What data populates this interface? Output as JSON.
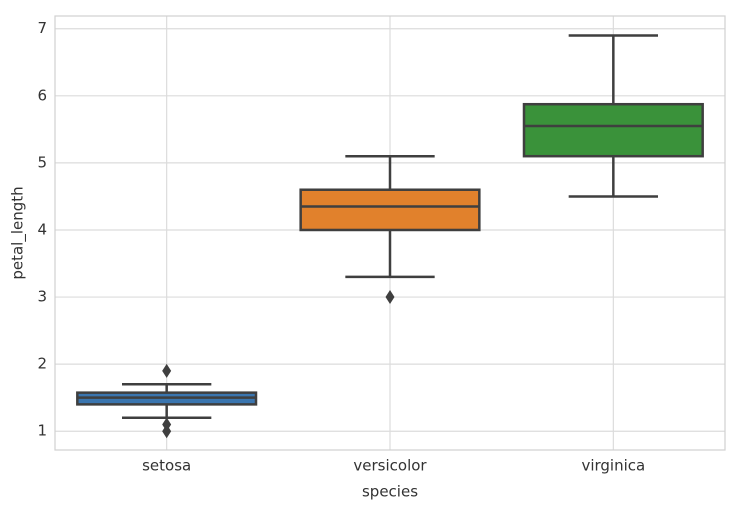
{
  "chart_data": {
    "type": "box",
    "x_label": "species",
    "y_label": "petal_length",
    "categories": [
      "setosa",
      "versicolor",
      "virginica"
    ],
    "boxes": [
      {
        "color": "#3a75af",
        "whislo": 1.2,
        "q1": 1.4,
        "med": 1.5,
        "q3": 1.575,
        "whishi": 1.7,
        "fliers": [
          1.9,
          1.0,
          1.1
        ]
      },
      {
        "color": "#e1812c",
        "whislo": 3.3,
        "q1": 4.0,
        "med": 4.35,
        "q3": 4.6,
        "whishi": 5.1,
        "fliers": [
          3.0
        ]
      },
      {
        "color": "#3a923a",
        "whislo": 4.5,
        "q1": 5.1,
        "med": 5.55,
        "q3": 5.875,
        "whishi": 6.9,
        "fliers": []
      }
    ],
    "ylim": [
      0.72,
      7.19
    ],
    "yticks": [
      1,
      2,
      3,
      4,
      5,
      6,
      7
    ],
    "grid": true
  }
}
